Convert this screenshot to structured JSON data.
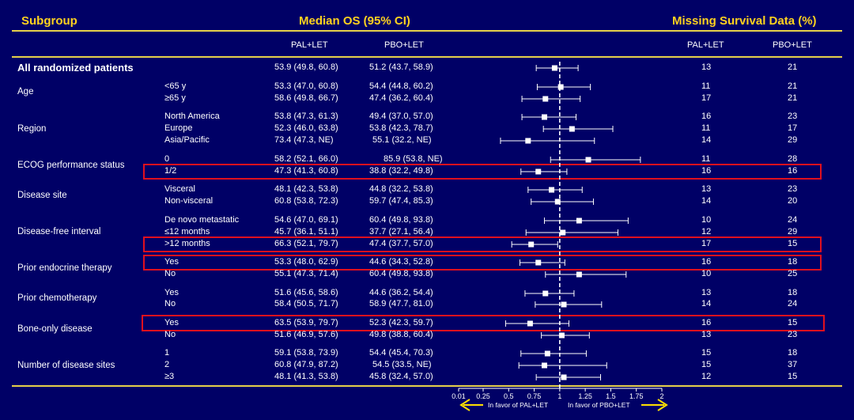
{
  "header": {
    "subgroup": "Subgroup",
    "median_os": "Median OS (95% CI)",
    "missing": "Missing Survival Data (%)"
  },
  "columns": {
    "pal_let": "PAL+LET",
    "pbo_let": "PBO+LET",
    "missing_pal": "PAL+LET",
    "missing_pbo": "PBO+LET"
  },
  "groups": [
    {
      "label": "All randomized patients"
    },
    {
      "label": "Age"
    },
    {
      "label": "Region"
    },
    {
      "label": "ECOG performance status"
    },
    {
      "label": "Disease site"
    },
    {
      "label": "Disease-free interval"
    },
    {
      "label": "Prior endocrine therapy"
    },
    {
      "label": "Prior chemotherapy"
    },
    {
      "label": "Bone-only disease"
    },
    {
      "label": "Number  of disease sites"
    }
  ],
  "rows": [
    {
      "sub": "",
      "pal": "53.9 (49.8, 60.8)",
      "pbo": "51.2 (43.7, 58.9)",
      "mpal": "13",
      "mpbo": "21"
    },
    {
      "sub": "<65 y",
      "pal": "53.3 (47.0, 60.8)",
      "pbo": "54.4 (44.8, 60.2)",
      "mpal": "11",
      "mpbo": "21"
    },
    {
      "sub": "≥65 y",
      "pal": "58.6 (49.8, 66.7)",
      "pbo": "47.4 (36.2, 60.4)",
      "mpal": "17",
      "mpbo": "21"
    },
    {
      "sub": "North America",
      "pal": "53.8 (47.3, 61.3)",
      "pbo": "49.4 (37.0, 57.0)",
      "mpal": "16",
      "mpbo": "23"
    },
    {
      "sub": "Europe",
      "pal": "52.3 (46.0, 63.8)",
      "pbo": "53.8 (42.3, 78.7)",
      "mpal": "11",
      "mpbo": "17"
    },
    {
      "sub": "Asia/Pacific",
      "pal": "73.4 (47.3, NE)",
      "pbo": "55.1 (32.2, NE)",
      "mpal": "14",
      "mpbo": "29"
    },
    {
      "sub": "0",
      "pal": "58.2 (52.1, 66.0)",
      "pbo": "85.9 (53.8, NE)",
      "mpal": "11",
      "mpbo": "28"
    },
    {
      "sub": "1/2",
      "pal": "47.3 (41.3, 60.8)",
      "pbo": "38.8 (32.2, 49.8)",
      "mpal": "16",
      "mpbo": "16"
    },
    {
      "sub": "Visceral",
      "pal": "48.1 (42.3, 53.8)",
      "pbo": "44.8 (32.2, 53.8)",
      "mpal": "13",
      "mpbo": "23"
    },
    {
      "sub": "Non-visceral",
      "pal": "60.8 (53.8, 72.3)",
      "pbo": "59.7 (47.4, 85.3)",
      "mpal": "14",
      "mpbo": "20"
    },
    {
      "sub": "De novo metastatic",
      "pal": "54.6 (47.0, 69.1)",
      "pbo": "60.4 (49.8, 93.8)",
      "mpal": "10",
      "mpbo": "24"
    },
    {
      "sub": "≤12 months",
      "pal": "45.7 (36.1, 51.1)",
      "pbo": "37.7 (27.1, 56.4)",
      "mpal": "12",
      "mpbo": "29"
    },
    {
      "sub": ">12 months",
      "pal": "66.3 (52.1, 79.7)",
      "pbo": "47.4 (37.7, 57.0)",
      "mpal": "17",
      "mpbo": "15"
    },
    {
      "sub": "Yes",
      "pal": "53.3 (48.0, 62.9)",
      "pbo": "44.6 (34.3, 52.8)",
      "mpal": "16",
      "mpbo": "18"
    },
    {
      "sub": "No",
      "pal": "55.1 (47.3, 71.4)",
      "pbo": "60.4 (49.8, 93.8)",
      "mpal": "10",
      "mpbo": "25"
    },
    {
      "sub": "Yes",
      "pal": "51.6 (45.6, 58.6)",
      "pbo": "44.6 (36.2, 54.4)",
      "mpal": "13",
      "mpbo": "18"
    },
    {
      "sub": "No",
      "pal": "58.4 (50.5, 71.7)",
      "pbo": "58.9 (47.7, 81.0)",
      "mpal": "14",
      "mpbo": "24"
    },
    {
      "sub": "Yes",
      "pal": "63.5 (53.9, 79.7)",
      "pbo": "52.3 (42.3, 59.7)",
      "mpal": "16",
      "mpbo": "15"
    },
    {
      "sub": "No",
      "pal": "51.6 (46.9, 57.6)",
      "pbo": "49.8 (38.8, 60.4)",
      "mpal": "13",
      "mpbo": "23"
    },
    {
      "sub": "1",
      "pal": "59.1 (53.8, 73.9)",
      "pbo": "54.4 (45.4, 70.3)",
      "mpal": "15",
      "mpbo": "18"
    },
    {
      "sub": "2",
      "pal": "60.8 (47.9, 87.2)",
      "pbo": "54.5 (33.5, NE)",
      "mpal": "15",
      "mpbo": "37"
    },
    {
      "sub": "≥3",
      "pal": "48.1 (41.3, 53.8)",
      "pbo": "45.8 (32.4, 57.0)",
      "mpal": "12",
      "mpbo": "15"
    }
  ],
  "colors": {
    "background": "#000066",
    "header": "#ffd21f",
    "highlight": "#e0101e",
    "arrow": "#ffe000"
  },
  "chart_data": {
    "type": "forest",
    "xlim": [
      0.01,
      2
    ],
    "ticks": [
      "0.01",
      "0.25",
      "0.5",
      "0.75",
      "1",
      "1.25",
      "1.5",
      "1.75",
      "2"
    ],
    "tick_values": [
      0.01,
      0.25,
      0.5,
      0.75,
      1,
      1.25,
      1.5,
      1.75,
      2
    ],
    "reference_line": 1,
    "left_label": "In favor of PAL+LET",
    "right_label": "In favor of  PBO+LET",
    "hr": [
      0.95,
      1.01,
      0.86,
      0.85,
      1.12,
      0.69,
      1.28,
      0.79,
      0.92,
      0.98,
      1.19,
      1.03,
      0.72,
      0.79,
      1.19,
      0.86,
      1.04,
      0.71,
      1.02,
      0.88,
      0.85,
      1.04
    ],
    "ci_low": [
      0.77,
      0.78,
      0.63,
      0.63,
      0.84,
      0.42,
      0.91,
      0.62,
      0.69,
      0.72,
      0.85,
      0.67,
      0.53,
      0.61,
      0.86,
      0.66,
      0.76,
      0.47,
      0.82,
      0.62,
      0.6,
      0.77
    ],
    "ci_high": [
      1.18,
      1.3,
      1.2,
      1.16,
      1.52,
      1.34,
      1.79,
      1.07,
      1.22,
      1.33,
      1.67,
      1.57,
      0.98,
      1.05,
      1.65,
      1.14,
      1.41,
      1.09,
      1.29,
      1.26,
      1.46,
      1.4
    ],
    "highlighted_rows": [
      7,
      12,
      13,
      17
    ]
  }
}
